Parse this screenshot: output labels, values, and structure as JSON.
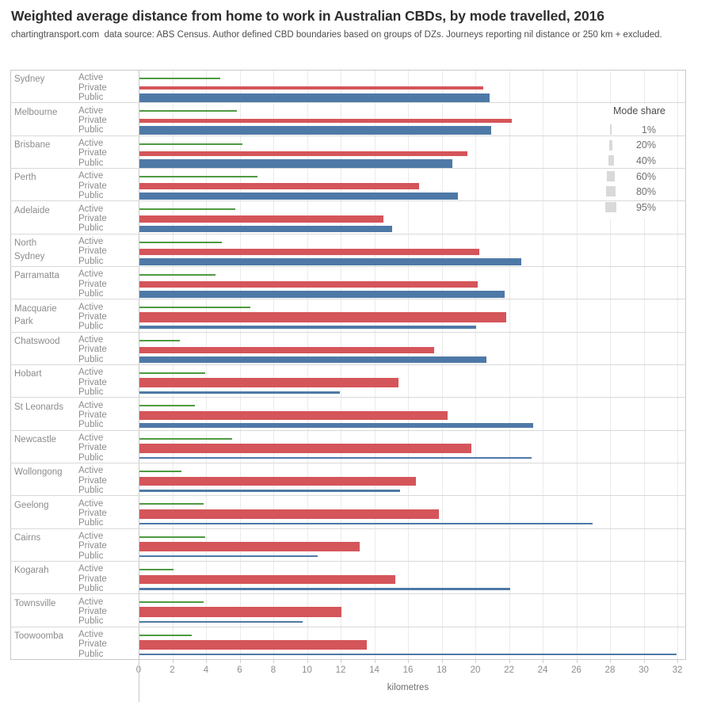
{
  "title": "Weighted average distance from home to work in Australian CBDs, by mode travelled, 2016",
  "subtitle": "chartingtransport.com  data source: ABS Census. Author defined CBD boundaries based on groups of DZs. Journeys reporting nil distance or 250 km + excluded.",
  "axis": {
    "label": "kilometres",
    "ticks": [
      0,
      2,
      4,
      6,
      8,
      10,
      12,
      14,
      16,
      18,
      20,
      22,
      24,
      26,
      28,
      30,
      32
    ],
    "range": [
      0,
      32.5
    ]
  },
  "legend": {
    "title": "Mode share",
    "entries": [
      {
        "label": "1%",
        "share": 1
      },
      {
        "label": "20%",
        "share": 20
      },
      {
        "label": "40%",
        "share": 40
      },
      {
        "label": "60%",
        "share": 60
      },
      {
        "label": "80%",
        "share": 80
      },
      {
        "label": "95%",
        "share": 95
      }
    ]
  },
  "colors": {
    "active": "#4f9a41",
    "private": "#d4555a",
    "public": "#4e79a7",
    "legend_swatch": "#d9d9d9"
  },
  "chart_data": {
    "type": "bar",
    "orientation": "horizontal",
    "title": "Weighted average distance from home to work in Australian CBDs, by mode travelled, 2016",
    "xlabel": "kilometres",
    "xlim": [
      0,
      32.5
    ],
    "value_unit": "km",
    "bar_thickness_encodes": "mode share (%)",
    "modes": [
      "Active",
      "Private",
      "Public"
    ],
    "cities": [
      {
        "name": "Sydney",
        "label": "Sydney",
        "bars": [
          {
            "mode": "Active",
            "km": 4.8,
            "share_pct": 5
          },
          {
            "mode": "Private",
            "km": 20.4,
            "share_pct": 19
          },
          {
            "mode": "Public",
            "km": 20.8,
            "share_pct": 74
          }
        ]
      },
      {
        "name": "Melbourne",
        "label": "Melbourne",
        "bars": [
          {
            "mode": "Active",
            "km": 5.8,
            "share_pct": 6
          },
          {
            "mode": "Private",
            "km": 22.1,
            "share_pct": 25
          },
          {
            "mode": "Public",
            "km": 20.9,
            "share_pct": 72
          }
        ]
      },
      {
        "name": "Brisbane",
        "label": "Brisbane",
        "bars": [
          {
            "mode": "Active",
            "km": 6.1,
            "share_pct": 5
          },
          {
            "mode": "Private",
            "km": 19.5,
            "share_pct": 28
          },
          {
            "mode": "Public",
            "km": 18.6,
            "share_pct": 68
          }
        ]
      },
      {
        "name": "Perth",
        "label": "Perth",
        "bars": [
          {
            "mode": "Active",
            "km": 7.0,
            "share_pct": 4
          },
          {
            "mode": "Private",
            "km": 16.6,
            "share_pct": 46
          },
          {
            "mode": "Public",
            "km": 18.9,
            "share_pct": 58
          }
        ]
      },
      {
        "name": "Adelaide",
        "label": "Adelaide",
        "bars": [
          {
            "mode": "Active",
            "km": 5.7,
            "share_pct": 6
          },
          {
            "mode": "Private",
            "km": 14.5,
            "share_pct": 52
          },
          {
            "mode": "Public",
            "km": 15.0,
            "share_pct": 48
          }
        ]
      },
      {
        "name": "North Sydney",
        "label": "North\nSydney",
        "bars": [
          {
            "mode": "Active",
            "km": 4.9,
            "share_pct": 4
          },
          {
            "mode": "Private",
            "km": 20.2,
            "share_pct": 50
          },
          {
            "mode": "Public",
            "km": 22.7,
            "share_pct": 60
          }
        ]
      },
      {
        "name": "Parramatta",
        "label": "Parramatta",
        "bars": [
          {
            "mode": "Active",
            "km": 4.5,
            "share_pct": 4
          },
          {
            "mode": "Private",
            "km": 20.1,
            "share_pct": 48
          },
          {
            "mode": "Public",
            "km": 21.7,
            "share_pct": 55
          }
        ]
      },
      {
        "name": "Macquarie Park",
        "label": "Macquarie\nPark",
        "bars": [
          {
            "mode": "Active",
            "km": 6.6,
            "share_pct": 3
          },
          {
            "mode": "Private",
            "km": 21.8,
            "share_pct": 82
          },
          {
            "mode": "Public",
            "km": 20.0,
            "share_pct": 25
          }
        ]
      },
      {
        "name": "Chatswood",
        "label": "Chatswood",
        "bars": [
          {
            "mode": "Active",
            "km": 2.4,
            "share_pct": 4
          },
          {
            "mode": "Private",
            "km": 17.5,
            "share_pct": 55
          },
          {
            "mode": "Public",
            "km": 20.6,
            "share_pct": 48
          }
        ]
      },
      {
        "name": "Hobart",
        "label": "Hobart",
        "bars": [
          {
            "mode": "Active",
            "km": 3.9,
            "share_pct": 9
          },
          {
            "mode": "Private",
            "km": 15.4,
            "share_pct": 80
          },
          {
            "mode": "Public",
            "km": 11.9,
            "share_pct": 8
          }
        ]
      },
      {
        "name": "St Leonards",
        "label": "St Leonards",
        "bars": [
          {
            "mode": "Active",
            "km": 3.3,
            "share_pct": 4
          },
          {
            "mode": "Private",
            "km": 18.3,
            "share_pct": 70
          },
          {
            "mode": "Public",
            "km": 23.4,
            "share_pct": 35
          }
        ]
      },
      {
        "name": "Newcastle",
        "label": "Newcastle",
        "bars": [
          {
            "mode": "Active",
            "km": 5.5,
            "share_pct": 6
          },
          {
            "mode": "Private",
            "km": 19.7,
            "share_pct": 80
          },
          {
            "mode": "Public",
            "km": 23.3,
            "share_pct": 8
          }
        ]
      },
      {
        "name": "Wollongong",
        "label": "Wollongong",
        "bars": [
          {
            "mode": "Active",
            "km": 2.5,
            "share_pct": 5
          },
          {
            "mode": "Private",
            "km": 16.4,
            "share_pct": 75
          },
          {
            "mode": "Public",
            "km": 15.5,
            "share_pct": 11
          }
        ]
      },
      {
        "name": "Geelong",
        "label": "Geelong",
        "bars": [
          {
            "mode": "Active",
            "km": 3.8,
            "share_pct": 5
          },
          {
            "mode": "Private",
            "km": 17.8,
            "share_pct": 80
          },
          {
            "mode": "Public",
            "km": 26.9,
            "share_pct": 10
          }
        ]
      },
      {
        "name": "Cairns",
        "label": "Cairns",
        "bars": [
          {
            "mode": "Active",
            "km": 3.9,
            "share_pct": 6
          },
          {
            "mode": "Private",
            "km": 13.1,
            "share_pct": 82
          },
          {
            "mode": "Public",
            "km": 10.6,
            "share_pct": 7
          }
        ]
      },
      {
        "name": "Kogarah",
        "label": "Kogarah",
        "bars": [
          {
            "mode": "Active",
            "km": 2.0,
            "share_pct": 4
          },
          {
            "mode": "Private",
            "km": 15.2,
            "share_pct": 74
          },
          {
            "mode": "Public",
            "km": 22.0,
            "share_pct": 15
          }
        ]
      },
      {
        "name": "Townsville",
        "label": "Townsville",
        "bars": [
          {
            "mode": "Active",
            "km": 3.8,
            "share_pct": 6
          },
          {
            "mode": "Private",
            "km": 12.0,
            "share_pct": 82
          },
          {
            "mode": "Public",
            "km": 9.7,
            "share_pct": 8
          }
        ]
      },
      {
        "name": "Toowoomba",
        "label": "Toowoomba",
        "bars": [
          {
            "mode": "Active",
            "km": 3.1,
            "share_pct": 5
          },
          {
            "mode": "Private",
            "km": 13.5,
            "share_pct": 84
          },
          {
            "mode": "Public",
            "km": 31.9,
            "share_pct": 3
          }
        ]
      }
    ]
  }
}
